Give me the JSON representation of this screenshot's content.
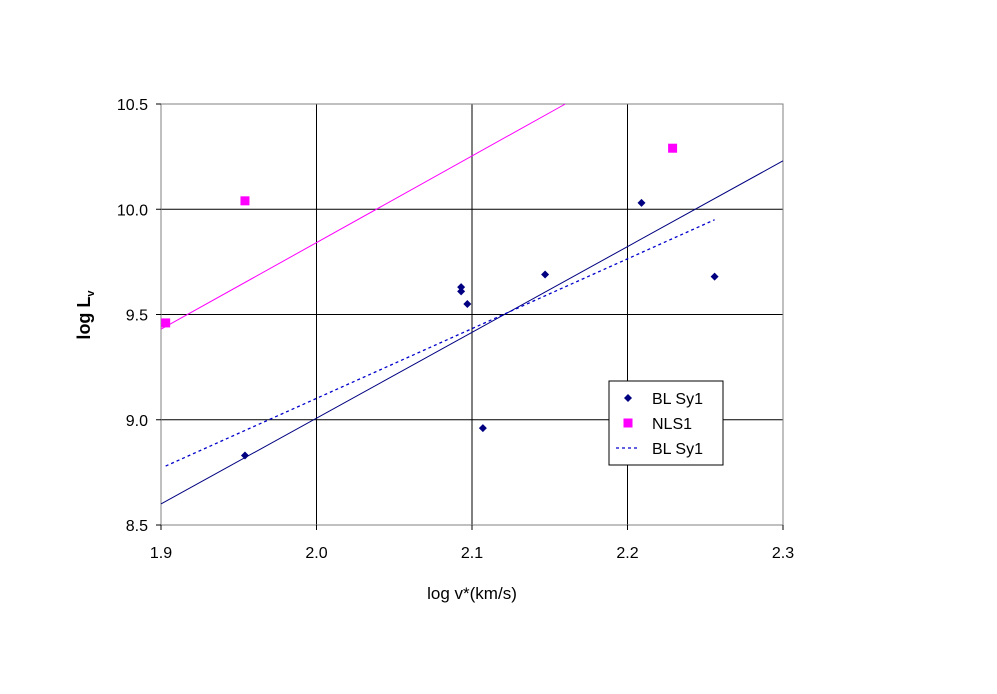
{
  "chart_data": {
    "type": "scatter",
    "title": "",
    "xlabel": "log v*(km/s)",
    "ylabel_main": "log L",
    "ylabel_sub": "v",
    "xlim": [
      1.9,
      2.3
    ],
    "ylim": [
      8.5,
      10.5
    ],
    "x_ticks": [
      1.9,
      2.0,
      2.1,
      2.2,
      2.3
    ],
    "y_ticks": [
      8.5,
      9.0,
      9.5,
      10.0,
      10.5
    ],
    "x_tick_labels": [
      "1.9",
      "2.0",
      "2.1",
      "2.2",
      "2.3"
    ],
    "y_tick_labels": [
      "8.5",
      "9.0",
      "9.5",
      "10.0",
      "10.5"
    ],
    "grid": true,
    "legend_position": "right",
    "series": [
      {
        "name": "BL Sy1",
        "marker": "diamond",
        "color": "#000080",
        "points": [
          {
            "x": 1.954,
            "y": 8.83
          },
          {
            "x": 2.093,
            "y": 9.63
          },
          {
            "x": 2.093,
            "y": 9.61
          },
          {
            "x": 2.097,
            "y": 9.55
          },
          {
            "x": 2.107,
            "y": 8.96
          },
          {
            "x": 2.147,
            "y": 9.69
          },
          {
            "x": 2.209,
            "y": 10.03
          },
          {
            "x": 2.256,
            "y": 9.68
          }
        ]
      },
      {
        "name": "NLS1",
        "marker": "square",
        "color": "#ff00ff",
        "points": [
          {
            "x": 1.903,
            "y": 9.46
          },
          {
            "x": 1.954,
            "y": 10.04
          },
          {
            "x": 2.229,
            "y": 10.29
          }
        ]
      },
      {
        "name": "BL Sy1",
        "marker": "dashed-line",
        "color": "#0000cc",
        "points": [
          {
            "x": 1.903,
            "y": 8.78
          },
          {
            "x": 2.256,
            "y": 9.95
          }
        ]
      }
    ],
    "unlabeled_lines": [
      {
        "style": "solid",
        "color": "#000080",
        "points": [
          {
            "x": 1.9,
            "y": 8.6
          },
          {
            "x": 2.3,
            "y": 10.23
          }
        ]
      },
      {
        "style": "solid",
        "color": "#ff00ff",
        "points": [
          {
            "x": 1.9,
            "y": 9.43
          },
          {
            "x": 2.16,
            "y": 10.5
          }
        ]
      }
    ]
  }
}
